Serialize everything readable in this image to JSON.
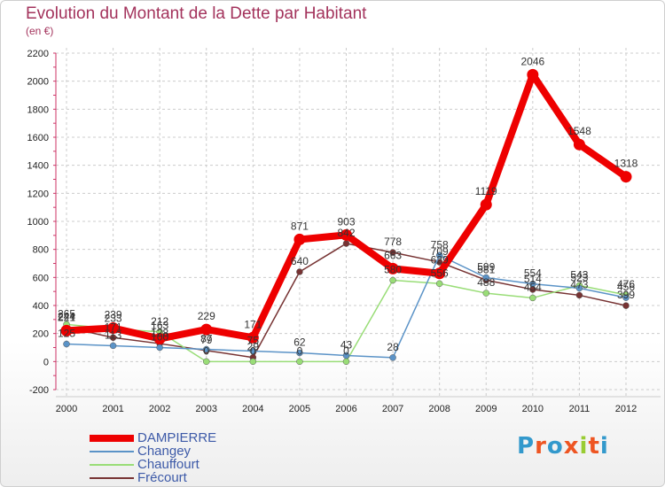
{
  "chart_data": {
    "type": "line",
    "title": "Evolution du Montant de la Dette par Habitant",
    "subtitle": "(en €)",
    "xlabel": "",
    "ylabel": "",
    "ylim": [
      -200,
      2200
    ],
    "yticks": [
      "-200",
      "0",
      "200",
      "400",
      "600",
      "800",
      "1000",
      "1200",
      "1400",
      "1600",
      "1800",
      "2000",
      "2200"
    ],
    "x": [
      "2000",
      "2001",
      "2002",
      "2003",
      "2004",
      "2005",
      "2006",
      "2007",
      "2008",
      "2009",
      "2010",
      "2011",
      "2012"
    ],
    "grid": "horizontal dashed",
    "legend_position": "bottom-left",
    "series": [
      {
        "name": "DAMPIERRE",
        "color": "#ee0000",
        "values": [
          221,
          239,
          163,
          229,
          171,
          871,
          903,
          663,
          629,
          1119,
          2046,
          1548,
          1318
        ],
        "labels": [
          "221",
          "239",
          "163",
          "229",
          "171",
          "871",
          "903",
          "663",
          "629",
          "1119",
          "2046",
          "1548",
          "1318"
        ]
      },
      {
        "name": "Changey",
        "color": "#5b93c7",
        "values": [
          125,
          113,
          100,
          87,
          75,
          62,
          43,
          28,
          758,
          599,
          554,
          523,
          456
        ],
        "labels": [
          "125",
          "113",
          "100",
          "87",
          "75",
          "62",
          "43",
          "28",
          "758",
          "599",
          "554",
          "523",
          "456"
        ]
      },
      {
        "name": "Chauffourt",
        "color": "#99dd77",
        "values": [
          265,
          233,
          212,
          0,
          0,
          0,
          0,
          580,
          556,
          488,
          454,
          543,
          476
        ],
        "labels": [
          "265",
          "233",
          "212",
          "0",
          "0",
          "0",
          "0",
          "580",
          "556",
          "488",
          "454",
          "543",
          "476"
        ]
      },
      {
        "name": "Frécourt",
        "color": "#773333",
        "values": [
          244,
          171,
          128,
          79,
          29,
          640,
          842,
          778,
          709,
          581,
          514,
          473,
          399
        ],
        "labels": [
          "244",
          "171",
          "128",
          "79",
          "29",
          "640",
          "842",
          "778",
          "709",
          "581",
          "514",
          "473",
          "399"
        ]
      }
    ]
  },
  "brand": {
    "logo_text": "Proxiti",
    "letter_colors": [
      "#3399cc",
      "#ee5522",
      "#3399cc",
      "#ee5522",
      "#99cc33",
      "#ee5522",
      "#3399cc"
    ]
  }
}
